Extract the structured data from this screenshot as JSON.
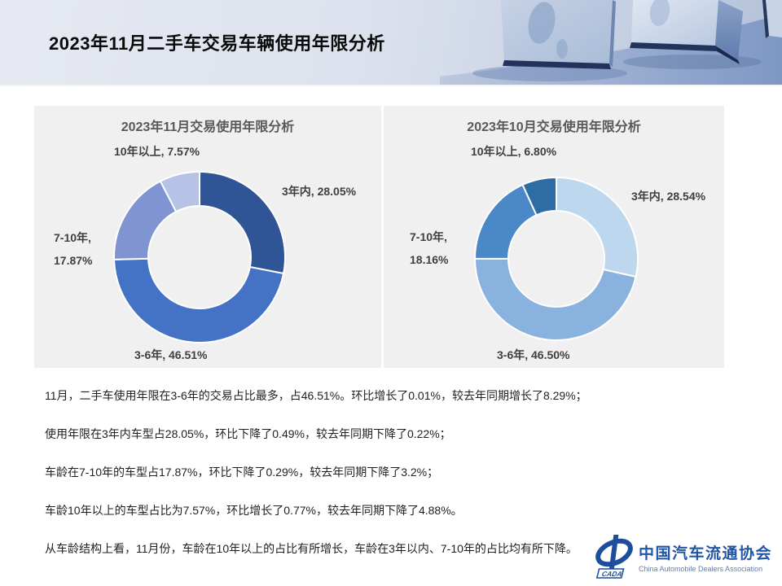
{
  "header": {
    "title": "2023年11月二手车交易车辆使用年限分析"
  },
  "chart_data": [
    {
      "type": "pie",
      "donut": true,
      "title": "2023年11月交易使用年限分析",
      "start_angle_deg": 0,
      "direction": "clockwise",
      "legend": "none",
      "segments": [
        {
          "label": "3年内",
          "value": 28.05,
          "label_text": "3年内, 28.05%",
          "color": "#2F5597"
        },
        {
          "label": "3-6年",
          "value": 46.51,
          "label_text": "3-6年, 46.51%",
          "color": "#4472C4"
        },
        {
          "label": "7-10年",
          "value": 17.87,
          "label_text": "7-10年, 17.87%",
          "color": "#8094D2"
        },
        {
          "label": "10年以上",
          "value": 7.57,
          "label_text": "10年以上, 7.57%",
          "color": "#B6C3E7"
        }
      ]
    },
    {
      "type": "pie",
      "donut": true,
      "title": "2023年10月交易使用年限分析",
      "start_angle_deg": 0,
      "direction": "clockwise",
      "legend": "none",
      "segments": [
        {
          "label": "3年内",
          "value": 28.54,
          "label_text": "3年内, 28.54%",
          "color": "#BDD7EE"
        },
        {
          "label": "3-6年",
          "value": 46.5,
          "label_text": "3-6年, 46.50%",
          "color": "#8AB2DF"
        },
        {
          "label": "7-10年",
          "value": 18.16,
          "label_text": "7-10年, 18.16%",
          "color": "#4B88C7"
        },
        {
          "label": "10年以上",
          "value": 6.8,
          "label_text": "10年以上, 6.80%",
          "color": "#2E6DA4"
        }
      ]
    }
  ],
  "analysis": {
    "paragraphs": [
      "11月，二手车使用年限在3-6年的交易占比最多，占46.51%。环比增长了0.01%，较去年同期增长了8.29%；",
      "使用年限在3年内车型占28.05%，环比下降了0.49%，较去年同期下降了0.22%；",
      "车龄在7-10年的车型占17.87%，环比下降了0.29%，较去年同期下降了3.2%；",
      "车龄10年以上的车型占比为7.57%，环比增长了0.77%，较去年同期下降了4.88%。",
      "从车龄结构上看，11月份，车龄在10年以上的占比有所增长，车龄在3年以内、7-10年的占比均有所下降。"
    ]
  },
  "footer": {
    "org_cn": "中国汽车流通协会",
    "org_en": "China Automobile Dealers Association",
    "logo_acronym": "CADA",
    "logo_color": "#1C4E9C"
  }
}
